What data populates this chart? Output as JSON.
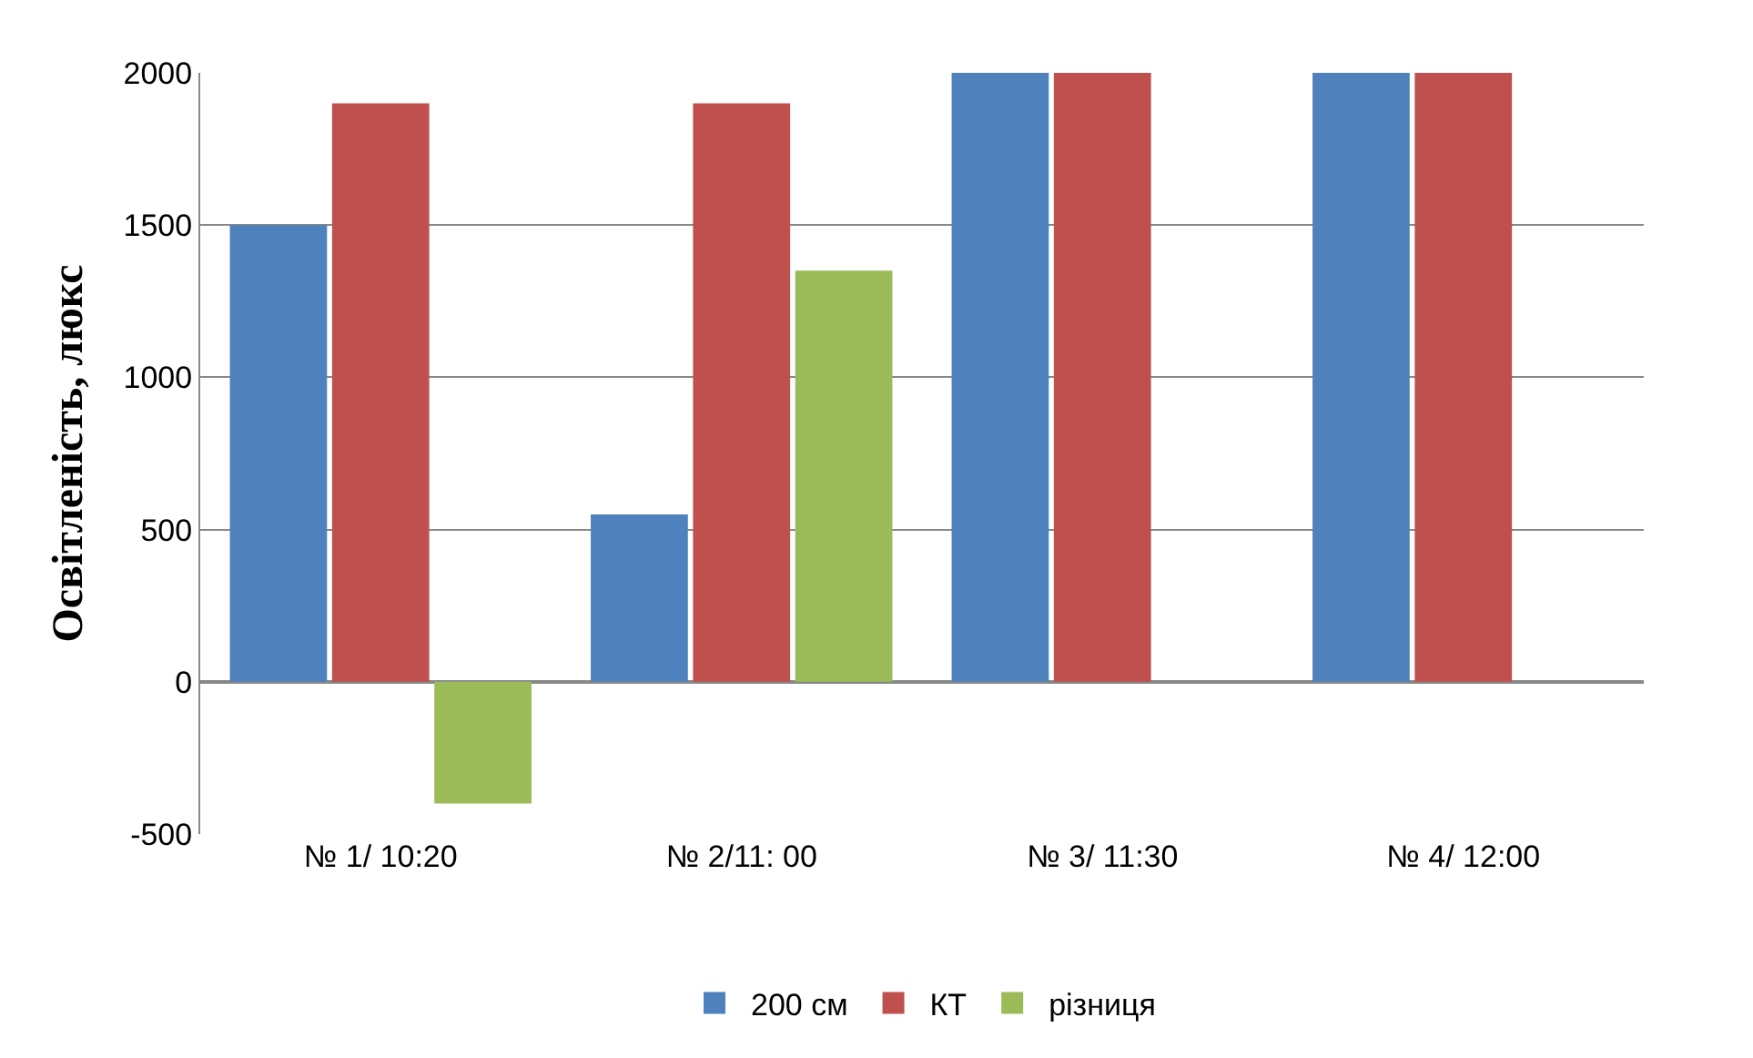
{
  "chart_data": {
    "type": "bar",
    "ylabel": "Освітленість, люкс",
    "categories": [
      "№ 1/ 10:20",
      "№ 2/11: 00",
      "№ 3/ 11:30",
      "№ 4/ 12:00"
    ],
    "series": [
      {
        "name": "200 см",
        "color": "#4f81bd",
        "values": [
          1500,
          550,
          2000,
          2000
        ]
      },
      {
        "name": "КТ",
        "color": "#c0504d",
        "values": [
          1900,
          1900,
          2000,
          2000
        ]
      },
      {
        "name": "різниця",
        "color": "#9bbb59",
        "values": [
          -400,
          1350,
          0,
          0
        ]
      }
    ],
    "ylim": [
      -500,
      2000
    ],
    "yticks": [
      -500,
      0,
      500,
      1000,
      1500,
      2000
    ],
    "grid": "y",
    "legend": "bottom"
  }
}
